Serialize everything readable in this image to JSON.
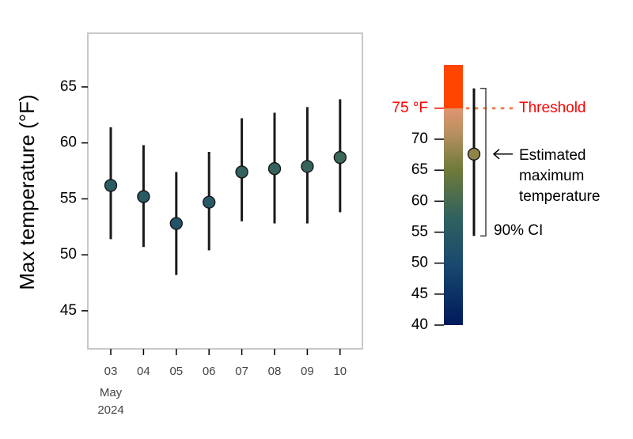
{
  "chart_data": {
    "type": "errorbar",
    "ylabel": "Max temperature (°F)",
    "categories": [
      "03",
      "04",
      "05",
      "06",
      "07",
      "08",
      "09",
      "10"
    ],
    "x_sublabels": [
      "May",
      "2024"
    ],
    "values": [
      56.2,
      55.2,
      52.8,
      54.7,
      57.4,
      57.7,
      57.9,
      58.7
    ],
    "lower": [
      51.4,
      50.7,
      48.2,
      50.4,
      53.0,
      52.8,
      52.8,
      53.8
    ],
    "upper": [
      61.4,
      59.8,
      57.4,
      59.2,
      62.2,
      62.7,
      63.2,
      63.9
    ],
    "ylim": [
      41.6,
      69.8
    ],
    "yticks": [
      45,
      50,
      55,
      60,
      65
    ],
    "colormap": [
      {
        "value": 40,
        "color": "#001a5c"
      },
      {
        "value": 50,
        "color": "#1a4a6e"
      },
      {
        "value": 57,
        "color": "#2f6060"
      },
      {
        "value": 65,
        "color": "#6e7a3a"
      },
      {
        "value": 71,
        "color": "#b89060"
      },
      {
        "value": 75,
        "color": "#e09470"
      },
      {
        "value": 75.01,
        "color": "#ff4500"
      },
      {
        "value": 82,
        "color": "#ff4500"
      }
    ],
    "legend": {
      "ylim": [
        40,
        82
      ],
      "yticks": [
        40,
        45,
        50,
        55,
        60,
        65,
        70,
        {
          "value": 75,
          "label": "75 °F"
        }
      ],
      "threshold_label": "Threshold",
      "example_value": 67.6,
      "example_lower": 54.4,
      "example_upper": 78.2,
      "estimate_label": [
        "Estimated",
        "maximum",
        "temperature"
      ],
      "ci_label": "90% CI",
      "threshold_color": "#ff0000"
    }
  }
}
